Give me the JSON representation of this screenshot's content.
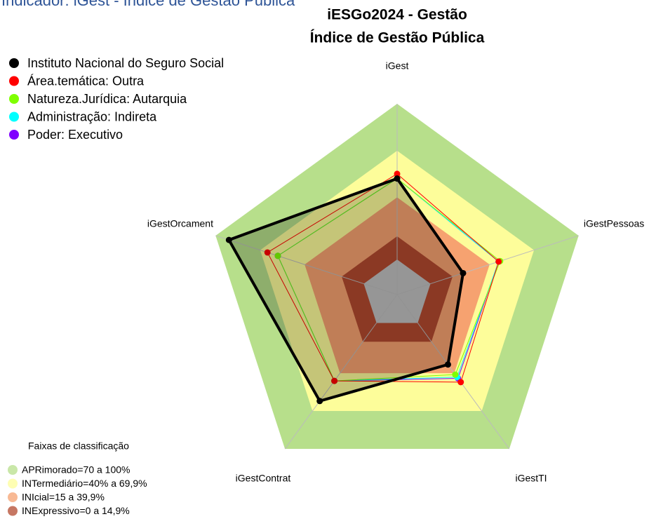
{
  "page_title": "Indicador: iGest - Índice de Gestão Pública",
  "chart_data": {
    "type": "radar",
    "title": [
      "iESGo2024 - Gestão",
      "Índice de Gestão Pública"
    ],
    "axes": [
      "iGest",
      "iGestPessoas",
      "iGestTI",
      "iGestContrat",
      "iGestOrcament"
    ],
    "rlim": [
      0,
      100
    ],
    "series": [
      {
        "name": "Instituto Nacional do Seguro Social",
        "color": "#000000",
        "values": [
          52,
          22,
          33,
          62,
          91
        ]
      },
      {
        "name": "Área.temática: Outra",
        "color": "#ff0000",
        "values": [
          55,
          46,
          47,
          46,
          65
        ]
      },
      {
        "name": "Natureza.Jurídica: Autarquia",
        "color": "#7fff00",
        "values": [
          52,
          47,
          41,
          46,
          58
        ]
      },
      {
        "name": "Administração: Indireta",
        "color": "#00ffff",
        "values": [
          52,
          46,
          43,
          46,
          58
        ]
      },
      {
        "name": "Poder: Executivo",
        "color": "#8000ff",
        "values": [
          52,
          46,
          44,
          46,
          58
        ]
      }
    ],
    "bands_title": "Faixas de classificação",
    "bands": [
      {
        "label": "APRimorado=70 a 100%",
        "from": 70,
        "to": 100,
        "color": "#b7df8b"
      },
      {
        "label": "INTermediário=40% a 69,9%",
        "from": 40,
        "to": 69.9,
        "color": "#fdfd9a"
      },
      {
        "label": "INIcial=15 a 39,9%",
        "from": 15,
        "to": 39.9,
        "color": "#f6a270"
      },
      {
        "label": "INExpressivo=0 a 14,9%",
        "from": 0,
        "to": 14.9,
        "color": "#b3492f"
      }
    ]
  }
}
